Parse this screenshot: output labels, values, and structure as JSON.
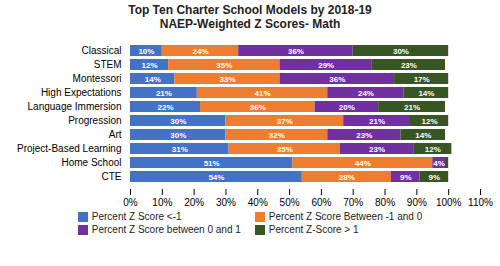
{
  "chart_data": {
    "type": "bar",
    "orientation": "horizontal",
    "stacked": true,
    "title": "Top Ten Charter School Models by 2018-19\nNAEP-Weighted Z Scores- Math",
    "categories": [
      "Classical",
      "STEM",
      "Montessori",
      "High Expectations",
      "Language Immersion",
      "Progression",
      "Art",
      "Project-Based Learning",
      "Home School",
      "CTE"
    ],
    "series": [
      {
        "name": "Percent Z Score <-1",
        "color": "#4472C4",
        "values": [
          10,
          12,
          14,
          21,
          22,
          30,
          30,
          31,
          51,
          54
        ],
        "value_labels": [
          "10%",
          "12%",
          "14%",
          "21%",
          "22%",
          "30%",
          "30%",
          "31%",
          "51%",
          "54%"
        ]
      },
      {
        "name": "Percent Z Score Between -1 and 0",
        "color": "#ED7D31",
        "values": [
          24,
          35,
          33,
          41,
          36,
          37,
          32,
          35,
          44,
          28
        ],
        "value_labels": [
          "24%",
          "35%",
          "33%",
          "41%",
          "36%",
          "37%",
          "32%",
          "35%",
          "44%",
          "28%"
        ]
      },
      {
        "name": "Percent Z Score between 0 and 1",
        "color": "#7030A0",
        "values": [
          36,
          29,
          36,
          24,
          20,
          21,
          23,
          23,
          4,
          9
        ],
        "value_labels": [
          "36%",
          "29%",
          "36%",
          "24%",
          "20%",
          "21%",
          "23%",
          "23%",
          "4%",
          "9%"
        ]
      },
      {
        "name": "Percent Z-Score > 1",
        "color": "#375623",
        "values": [
          30,
          23,
          17,
          14,
          21,
          12,
          14,
          12,
          1,
          9
        ],
        "value_labels": [
          "30%",
          "23%",
          "17%",
          "14%",
          "21%",
          "12%",
          "14%",
          "12%",
          null,
          "9%"
        ]
      }
    ],
    "xlim": [
      0,
      110
    ],
    "xticks": [
      {
        "value": 0,
        "label": "0%"
      },
      {
        "value": 10,
        "label": "10%"
      },
      {
        "value": 20,
        "label": "20%"
      },
      {
        "value": 30,
        "label": "30%"
      },
      {
        "value": 40,
        "label": "40%"
      },
      {
        "value": 50,
        "label": "50%"
      },
      {
        "value": 60,
        "label": "60%"
      },
      {
        "value": 70,
        "label": "70%"
      },
      {
        "value": 80,
        "label": "80%"
      },
      {
        "value": 90,
        "label": "90%"
      },
      {
        "value": 100,
        "label": "100%"
      },
      {
        "value": 110,
        "label": "110%"
      }
    ],
    "grid": false,
    "data_labels": true,
    "legend": "bottom"
  }
}
